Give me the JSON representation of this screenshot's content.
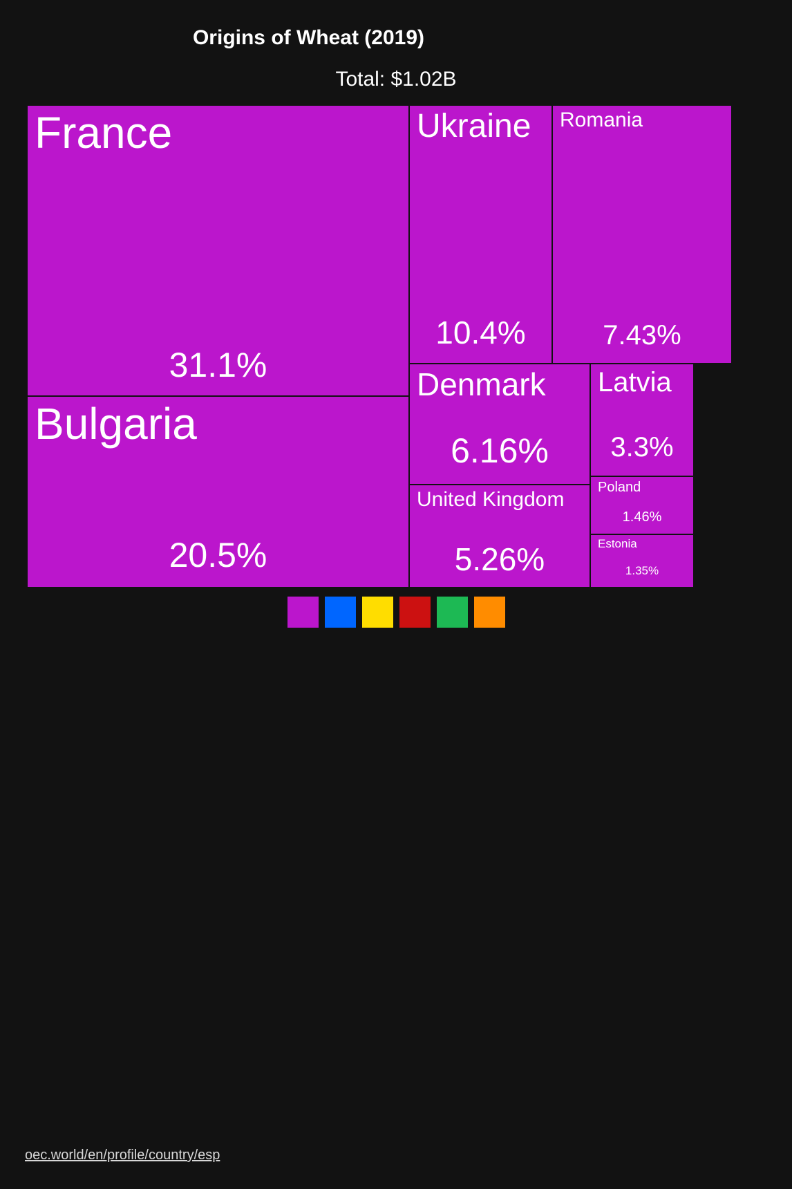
{
  "title": "Origins of Wheat (2019)",
  "subtitle": "Total: $1.02B",
  "source_link": "oec.world/en/profile/country/esp",
  "colors": {
    "background": "#121212",
    "tile": "#BB16CC",
    "legend": [
      "#BB16CC",
      "#0066FF",
      "#FFDD00",
      "#CC1111",
      "#1DB954",
      "#FF8C00"
    ]
  },
  "chart_data": {
    "type": "treemap",
    "title": "Origins of Wheat (2019)",
    "subtitle": "Total: $1.02B",
    "items": [
      {
        "name": "France",
        "value": 31.1,
        "label": "31.1%"
      },
      {
        "name": "Bulgaria",
        "value": 20.5,
        "label": "20.5%"
      },
      {
        "name": "Ukraine",
        "value": 10.4,
        "label": "10.4%"
      },
      {
        "name": "Romania",
        "value": 7.43,
        "label": "7.43%"
      },
      {
        "name": "Denmark",
        "value": 6.16,
        "label": "6.16%"
      },
      {
        "name": "United Kingdom",
        "value": 5.26,
        "label": "5.26%"
      },
      {
        "name": "Latvia",
        "value": 3.3,
        "label": "3.3%"
      },
      {
        "name": "Poland",
        "value": 1.46,
        "label": "1.46%"
      },
      {
        "name": "Estonia",
        "value": 1.35,
        "label": "1.35%"
      }
    ],
    "legend_colors": [
      "#BB16CC",
      "#0066FF",
      "#FFDD00",
      "#CC1111",
      "#1DB954",
      "#FF8C00"
    ]
  }
}
